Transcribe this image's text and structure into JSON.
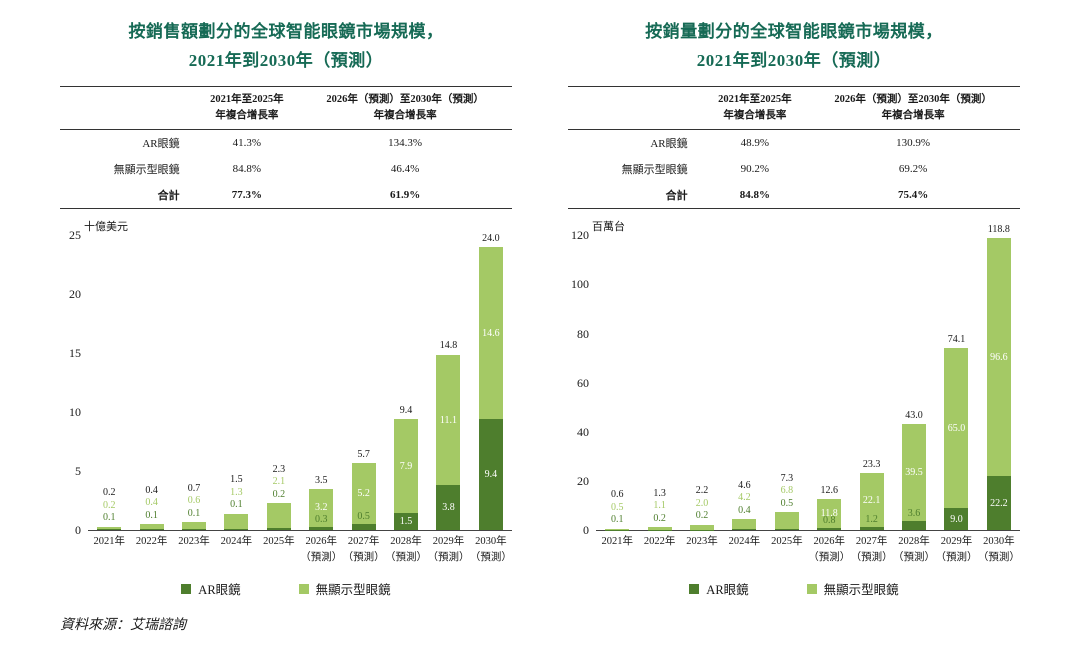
{
  "colors": {
    "title": "#166a55",
    "ar": "#4e7e2d",
    "nodisplay": "#a4c965",
    "total_label": "#1a1a1a",
    "axis_line": "#444444"
  },
  "legend": {
    "ar": "AR眼鏡",
    "nodisplay": "無顯示型眼鏡"
  },
  "source_note": "資料來源：艾瑞諮詢",
  "chart_data": [
    {
      "type": "bar",
      "stacked": true,
      "title_line1": "按銷售額劃分的全球智能眼鏡市場規模，",
      "title_line2": "2021年到2030年（預測）",
      "unit": "十億美元",
      "ylim": [
        0,
        25
      ],
      "yticks": [
        0,
        5,
        10,
        15,
        20,
        25
      ],
      "categories": [
        "2021年",
        "2022年",
        "2023年",
        "2024年",
        "2025年",
        "2026年",
        "2027年",
        "2028年",
        "2029年",
        "2030年"
      ],
      "forecast_suffix": "（預測）",
      "forecast_from_index": 5,
      "series": [
        {
          "name": "AR眼鏡",
          "values": [
            0.1,
            0.1,
            0.1,
            0.1,
            0.2,
            0.3,
            0.5,
            1.5,
            3.8,
            9.4
          ]
        },
        {
          "name": "無顯示型眼鏡",
          "values": [
            0.2,
            0.4,
            0.6,
            1.3,
            2.1,
            3.2,
            5.2,
            7.9,
            11.1,
            14.6
          ]
        }
      ],
      "totals": [
        0.2,
        0.4,
        0.7,
        1.5,
        2.3,
        3.5,
        5.7,
        9.4,
        14.8,
        24.0
      ],
      "grid": false,
      "legend_position": "bottom",
      "table": {
        "col1": "2021年至2025年\n年複合增長率",
        "col2": "2026年（預測）至2030年（預測）\n年複合增長率",
        "rows": [
          {
            "label": "AR眼鏡",
            "v1": "41.3%",
            "v2": "134.3%"
          },
          {
            "label": "無顯示型眼鏡",
            "v1": "84.8%",
            "v2": "46.4%"
          },
          {
            "label": "合計",
            "v1": "77.3%",
            "v2": "61.9%"
          }
        ]
      }
    },
    {
      "type": "bar",
      "stacked": true,
      "title_line1": "按銷量劃分的全球智能眼鏡市場規模，",
      "title_line2": "2021年到2030年（預測）",
      "unit": "百萬台",
      "ylim": [
        0,
        120
      ],
      "yticks": [
        0,
        20,
        40,
        60,
        80,
        100,
        120
      ],
      "categories": [
        "2021年",
        "2022年",
        "2023年",
        "2024年",
        "2025年",
        "2026年",
        "2027年",
        "2028年",
        "2029年",
        "2030年"
      ],
      "forecast_suffix": "（預測）",
      "forecast_from_index": 5,
      "series": [
        {
          "name": "AR眼鏡",
          "values": [
            0.1,
            0.2,
            0.2,
            0.4,
            0.5,
            0.8,
            1.2,
            3.6,
            9.0,
            22.2
          ]
        },
        {
          "name": "無顯示型眼鏡",
          "values": [
            0.5,
            1.1,
            2.0,
            4.2,
            6.8,
            11.8,
            22.1,
            39.5,
            65.0,
            96.6
          ]
        }
      ],
      "totals": [
        0.6,
        1.3,
        2.2,
        4.6,
        7.3,
        12.6,
        23.3,
        43.0,
        74.1,
        118.8
      ],
      "grid": false,
      "legend_position": "bottom",
      "table": {
        "col1": "2021年至2025年\n年複合增長率",
        "col2": "2026年（預測）至2030年（預測）\n年複合增長率",
        "rows": [
          {
            "label": "AR眼鏡",
            "v1": "48.9%",
            "v2": "130.9%"
          },
          {
            "label": "無顯示型眼鏡",
            "v1": "90.2%",
            "v2": "69.2%"
          },
          {
            "label": "合計",
            "v1": "84.8%",
            "v2": "75.4%"
          }
        ]
      }
    }
  ]
}
